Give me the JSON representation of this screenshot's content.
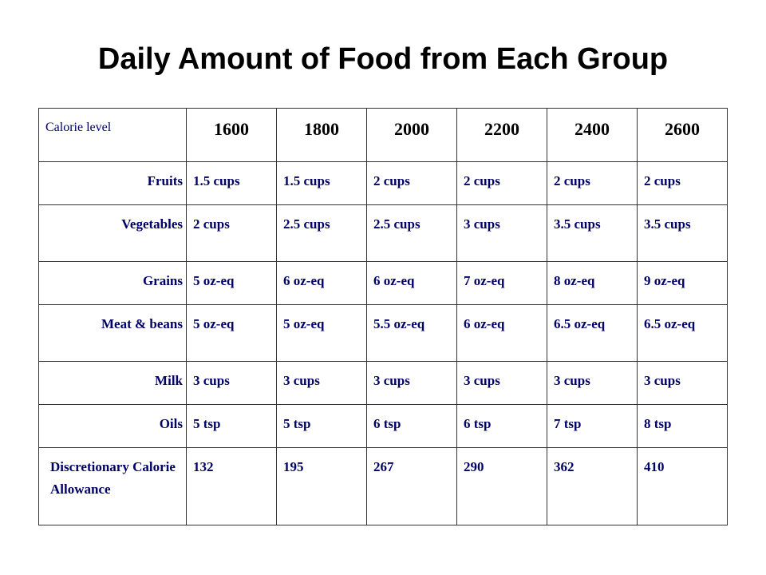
{
  "title": "Daily Amount of Food from Each Group",
  "table": {
    "header_label": "Calorie level",
    "calorie_levels": [
      "1600",
      "1800",
      "2000",
      "2200",
      "2400",
      "2600"
    ],
    "rows": [
      {
        "label": "Fruits",
        "values": [
          "1.5 cups",
          "1.5 cups",
          "2 cups",
          "2 cups",
          "2 cups",
          "2 cups"
        ]
      },
      {
        "label": "Vegetables",
        "values": [
          "2 cups",
          "2.5 cups",
          "2.5 cups",
          "3 cups",
          "3.5 cups",
          "3.5 cups"
        ]
      },
      {
        "label": "Grains",
        "values": [
          "5 oz-eq",
          "6 oz-eq",
          "6 oz-eq",
          "7 oz-eq",
          "8 oz-eq",
          "9 oz-eq"
        ]
      },
      {
        "label": "Meat & beans",
        "values": [
          "5 oz-eq",
          "5 oz-eq",
          "5.5 oz-eq",
          "6 oz-eq",
          "6.5 oz-eq",
          "6.5 oz-eq"
        ]
      },
      {
        "label": "Milk",
        "values": [
          "3 cups",
          "3 cups",
          "3 cups",
          "3 cups",
          "3 cups",
          "3 cups"
        ]
      },
      {
        "label": "Oils",
        "values": [
          "5 tsp",
          "5 tsp",
          "6 tsp",
          "6 tsp",
          "7 tsp",
          "8 tsp"
        ]
      },
      {
        "label": "Discretionary Calorie Allowance",
        "values": [
          "132",
          "195",
          "267",
          "290",
          "362",
          "410"
        ]
      }
    ]
  },
  "colors": {
    "text_blue": "#000066",
    "header_numbers": "#000000",
    "border": "#333333"
  }
}
